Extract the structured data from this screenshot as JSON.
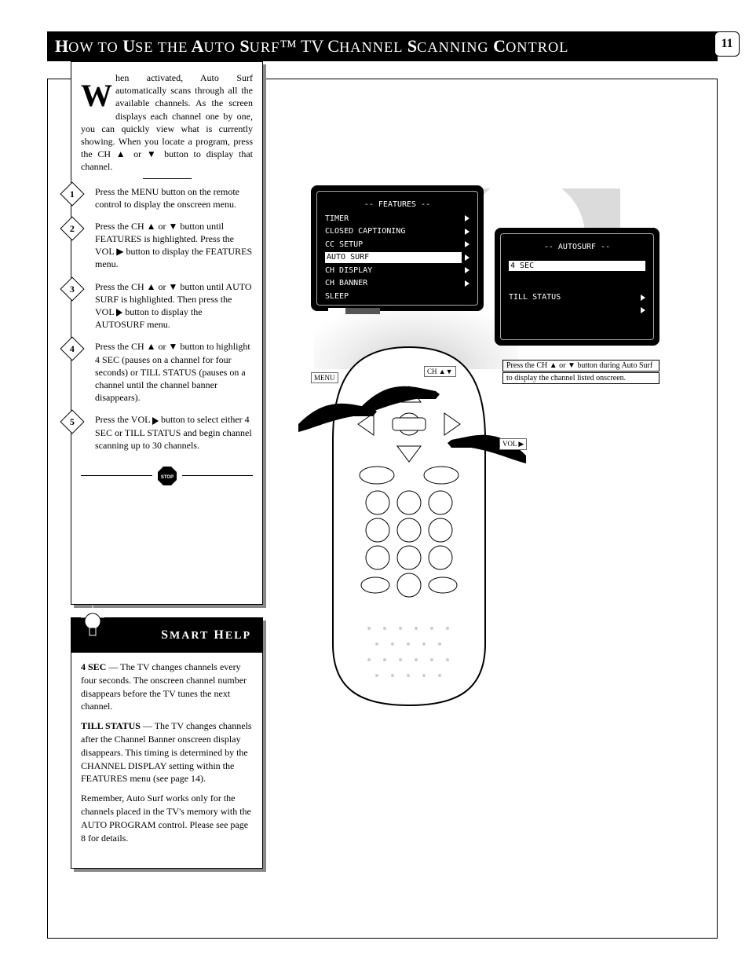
{
  "title_prefix": "H",
  "title_small": "OW TO",
  "title_mid": " U",
  "title_small2": "SE THE",
  "title_mid2": " A",
  "title_small3": "UTO",
  "title_mid3": " S",
  "title_small4": "URF",
  "title_cont": "™ TV C",
  "title_small5": "HANNEL",
  "title_mid5": " S",
  "title_small6": "CANNING",
  "title_mid6": " C",
  "title_small7": "ONTROL",
  "page_no": "11",
  "intro": "hen activated, Auto Surf automatically scans through all the available channels. As the screen displays each channel one by one, you can quickly view what is currently showing. When you locate a program, press the CH ▲ or ▼ button to display that channel.",
  "step1": "Press the MENU button on the remote control to display the onscreen menu.",
  "step2": "Press the CH ▲ or ▼ button until FEATURES is highlighted. Press the VOL ▶ button to display the FEATURES menu.",
  "step3_a": "Press the CH ▲ or ▼ button until AUTO SURF is highlighted. Then press the VOL ",
  "step3_b": " button to display the AUTOSURF menu.",
  "step4": "Press the CH ▲ or ▼ button to highlight 4 SEC (pauses on a channel for four seconds) or TILL STATUS (pauses on a channel until the channel banner disappears).",
  "step5_a": "Press the VOL ",
  "step5_b": " button to select either 4 SEC or TILL STATUS and begin channel scanning up to 30 channels.",
  "help_title": "MART",
  "help_title2": "ELP",
  "help1_label": "4 SEC ",
  "help1": "— The TV changes channels every four seconds. The onscreen channel number disappears before the TV tunes the next channel.",
  "help2_label": "TILL STATUS ",
  "help2": "— The TV changes channels after the Channel Banner onscreen display disappears. This timing is determined by the CHANNEL DISPLAY setting within the FEATURES menu (see page 14).",
  "help3": "Remember, Auto Surf works only for the channels placed in the TV's memory with the AUTO PROGRAM control. Please see page 8 for details.",
  "osd1": {
    "header": "-- FEATURES --",
    "rows": [
      {
        "label": "TIMER",
        "sub": true
      },
      {
        "label": "CLOSED CAPTIONING",
        "sub": true
      },
      {
        "label": "CC SETUP",
        "sub": true
      },
      {
        "label": "AUTO SURF",
        "sub": true,
        "sel": true
      },
      {
        "label": "CH DISPLAY",
        "sub": true
      },
      {
        "label": "CH BANNER",
        "sub": true
      },
      {
        "label": "SLEEP"
      }
    ]
  },
  "osd2": {
    "header": "-- AUTOSURF --",
    "opt1": "4 SEC",
    "opt2": "TILL STATUS"
  },
  "underbox": [
    "Press the CH ▲ or ▼ button during Auto Surf",
    "to display the channel listed onscreen."
  ],
  "callout_menu": "MENU",
  "callout_ch": "CH ▲▼",
  "callout_vol": "VOL ▶",
  "colors": {
    "gray": "#888888",
    "black": "#000000"
  }
}
